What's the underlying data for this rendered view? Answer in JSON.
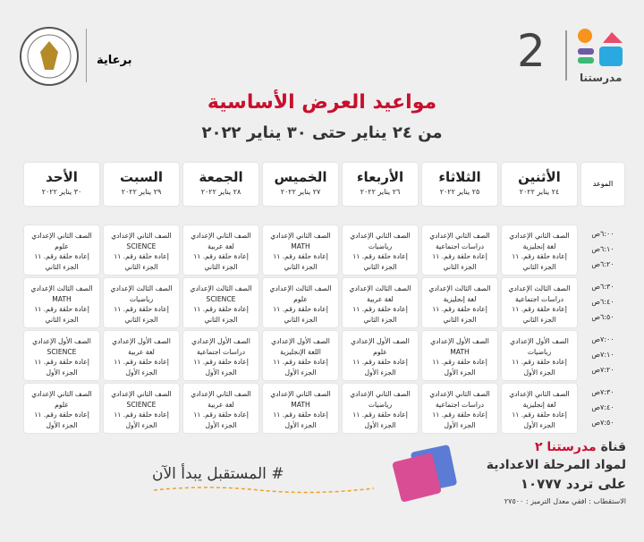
{
  "header": {
    "sponsor": "برعاية",
    "channel_number": "2",
    "brand": "مدرستنا"
  },
  "title": "مواعيد العرض الأساسية",
  "subtitle": "من ٢٤ يناير حتى ٣٠ يناير ٢٠٢٢",
  "table": {
    "corner": "الموعد",
    "days": [
      {
        "name": "الأثنين",
        "date": "٢٤ يناير ٢٠٢٢"
      },
      {
        "name": "الثلاثاء",
        "date": "٢٥ يناير ٢٠٢٢"
      },
      {
        "name": "الأربعاء",
        "date": "٢٦ يناير ٢٠٢٢"
      },
      {
        "name": "الخميس",
        "date": "٢٧ يناير ٢٠٢٢"
      },
      {
        "name": "الجمعة",
        "date": "٢٨ يناير ٢٠٢٢"
      },
      {
        "name": "السبت",
        "date": "٢٩ يناير ٢٠٢٢"
      },
      {
        "name": "الأحد",
        "date": "٣٠ يناير ٢٠٢٢"
      }
    ],
    "slots": [
      {
        "times": [
          "٦:٠٠ص",
          "٦:١٠ص",
          "٦:٢٠ص"
        ],
        "cells": [
          {
            "grade": "الصف الثاني الإعدادي",
            "subject": "لغة إنجليزية",
            "episode": "إعادة حلقة رقم. ١١",
            "part": "الجزء الثاني"
          },
          {
            "grade": "الصف الثاني الإعدادي",
            "subject": "دراسات اجتماعية",
            "episode": "إعادة حلقة رقم. ١١",
            "part": "الجزء الثاني"
          },
          {
            "grade": "الصف الثاني الإعدادي",
            "subject": "رياضيات",
            "episode": "إعادة حلقة رقم. ١١",
            "part": "الجزء الثاني"
          },
          {
            "grade": "الصف الثاني الإعدادي",
            "subject": "MATH",
            "episode": "إعادة حلقة رقم. ١١",
            "part": "الجزء الثاني"
          },
          {
            "grade": "الصف الثاني الإعدادي",
            "subject": "لغة عربية",
            "episode": "إعادة حلقة رقم. ١١",
            "part": "الجزء الثاني"
          },
          {
            "grade": "الصف الثاني الإعدادي",
            "subject": "SCIENCE",
            "episode": "إعادة حلقة رقم. ١١",
            "part": "الجزء الثاني"
          },
          {
            "grade": "الصف الثاني الإعدادي",
            "subject": "علوم",
            "episode": "إعادة حلقة رقم. ١١",
            "part": "الجزء الثاني"
          }
        ]
      },
      {
        "times": [
          "٦:٣٠ص",
          "٦:٤٠ص",
          "٦:٥٠ص"
        ],
        "cells": [
          {
            "grade": "الصف الثالث الإعدادي",
            "subject": "دراسات اجتماعية",
            "episode": "إعادة حلقة رقم. ١١",
            "part": "الجزء الثاني"
          },
          {
            "grade": "الصف الثالث الإعدادي",
            "subject": "لغة إنجليزية",
            "episode": "إعادة حلقة رقم. ١١",
            "part": "الجزء الثاني"
          },
          {
            "grade": "الصف الثالث الإعدادي",
            "subject": "لغة عربية",
            "episode": "إعادة حلقة رقم. ١١",
            "part": "الجزء الثاني"
          },
          {
            "grade": "الصف الثالث الإعدادي",
            "subject": "علوم",
            "episode": "إعادة حلقة رقم. ١١",
            "part": "الجزء الثاني"
          },
          {
            "grade": "الصف الثالث الإعدادي",
            "subject": "SCIENCE",
            "episode": "إعادة حلقة رقم. ١١",
            "part": "الجزء الثاني"
          },
          {
            "grade": "الصف الثالث الإعدادي",
            "subject": "رياضيات",
            "episode": "إعادة حلقة رقم. ١١",
            "part": "الجزء الثاني"
          },
          {
            "grade": "الصف الثالث الإعدادي",
            "subject": "MATH",
            "episode": "إعادة حلقة رقم. ١١",
            "part": "الجزء الثاني"
          }
        ]
      },
      {
        "times": [
          "٧:٠٠ص",
          "٧:١٠ص",
          "٧:٢٠ص"
        ],
        "cells": [
          {
            "grade": "الصف الأول الإعدادي",
            "subject": "رياضيات",
            "episode": "إعادة حلقة رقم. ١١",
            "part": "الجزء الأول"
          },
          {
            "grade": "الصف الأول الإعدادي",
            "subject": "MATH",
            "episode": "إعادة حلقة رقم. ١١",
            "part": "الجزء الأول"
          },
          {
            "grade": "الصف الأول الإعدادي",
            "subject": "علوم",
            "episode": "إعادة حلقة رقم. ١١",
            "part": "الجزء الأول"
          },
          {
            "grade": "الصف الأول الإعدادي",
            "subject": "اللغة الإنجليزية",
            "episode": "إعادة حلقة رقم. ١١",
            "part": "الجزء الأول"
          },
          {
            "grade": "الصف الأول الإعدادي",
            "subject": "دراسات اجتماعية",
            "episode": "إعادة حلقة رقم. ١١",
            "part": "الجزء الأول"
          },
          {
            "grade": "الصف الأول الإعدادي",
            "subject": "لغة عربية",
            "episode": "إعادة حلقة رقم. ١١",
            "part": "الجزء الأول"
          },
          {
            "grade": "الصف الأول الإعدادي",
            "subject": "SCIENCE",
            "episode": "إعادة حلقة رقم. ١١",
            "part": "الجزء الأول"
          }
        ]
      },
      {
        "times": [
          "٧:٣٠ص",
          "٧:٤٠ص",
          "٧:٥٠ص"
        ],
        "cells": [
          {
            "grade": "الصف الثاني الإعدادي",
            "subject": "لغة إنجليزية",
            "episode": "إعادة حلقة رقم. ١١",
            "part": "الجزء الأول"
          },
          {
            "grade": "الصف الثاني الإعدادي",
            "subject": "دراسات اجتماعية",
            "episode": "إعادة حلقة رقم. ١١",
            "part": "الجزء الأول"
          },
          {
            "grade": "الصف الثاني الإعدادي",
            "subject": "رياضيات",
            "episode": "إعادة حلقة رقم. ١١",
            "part": "الجزء الأول"
          },
          {
            "grade": "الصف الثاني الإعدادي",
            "subject": "MATH",
            "episode": "إعادة حلقة رقم. ١١",
            "part": "الجزء الأول"
          },
          {
            "grade": "الصف الثاني الإعدادي",
            "subject": "لغة عربية",
            "episode": "إعادة حلقة رقم. ١١",
            "part": "الجزء الأول"
          },
          {
            "grade": "الصف الثاني الإعدادي",
            "subject": "SCIENCE",
            "episode": "إعادة حلقة رقم. ١١",
            "part": "الجزء الأول"
          },
          {
            "grade": "الصف الثاني الإعدادي",
            "subject": "علوم",
            "episode": "إعادة حلقة رقم. ١١",
            "part": "الجزء الأول"
          }
        ]
      }
    ]
  },
  "footer": {
    "channel": "قناة",
    "channel_name": "مدرستنا ٢",
    "line2": "لمواد المرحلة الاعدادية",
    "line3": "على تردد ١٠٧٧٧",
    "line4": "الاستقطاب : افقي معدل الترميز : ٢٧٥٠٠",
    "hashtag": "# المستقبل يبدأ الآن"
  }
}
